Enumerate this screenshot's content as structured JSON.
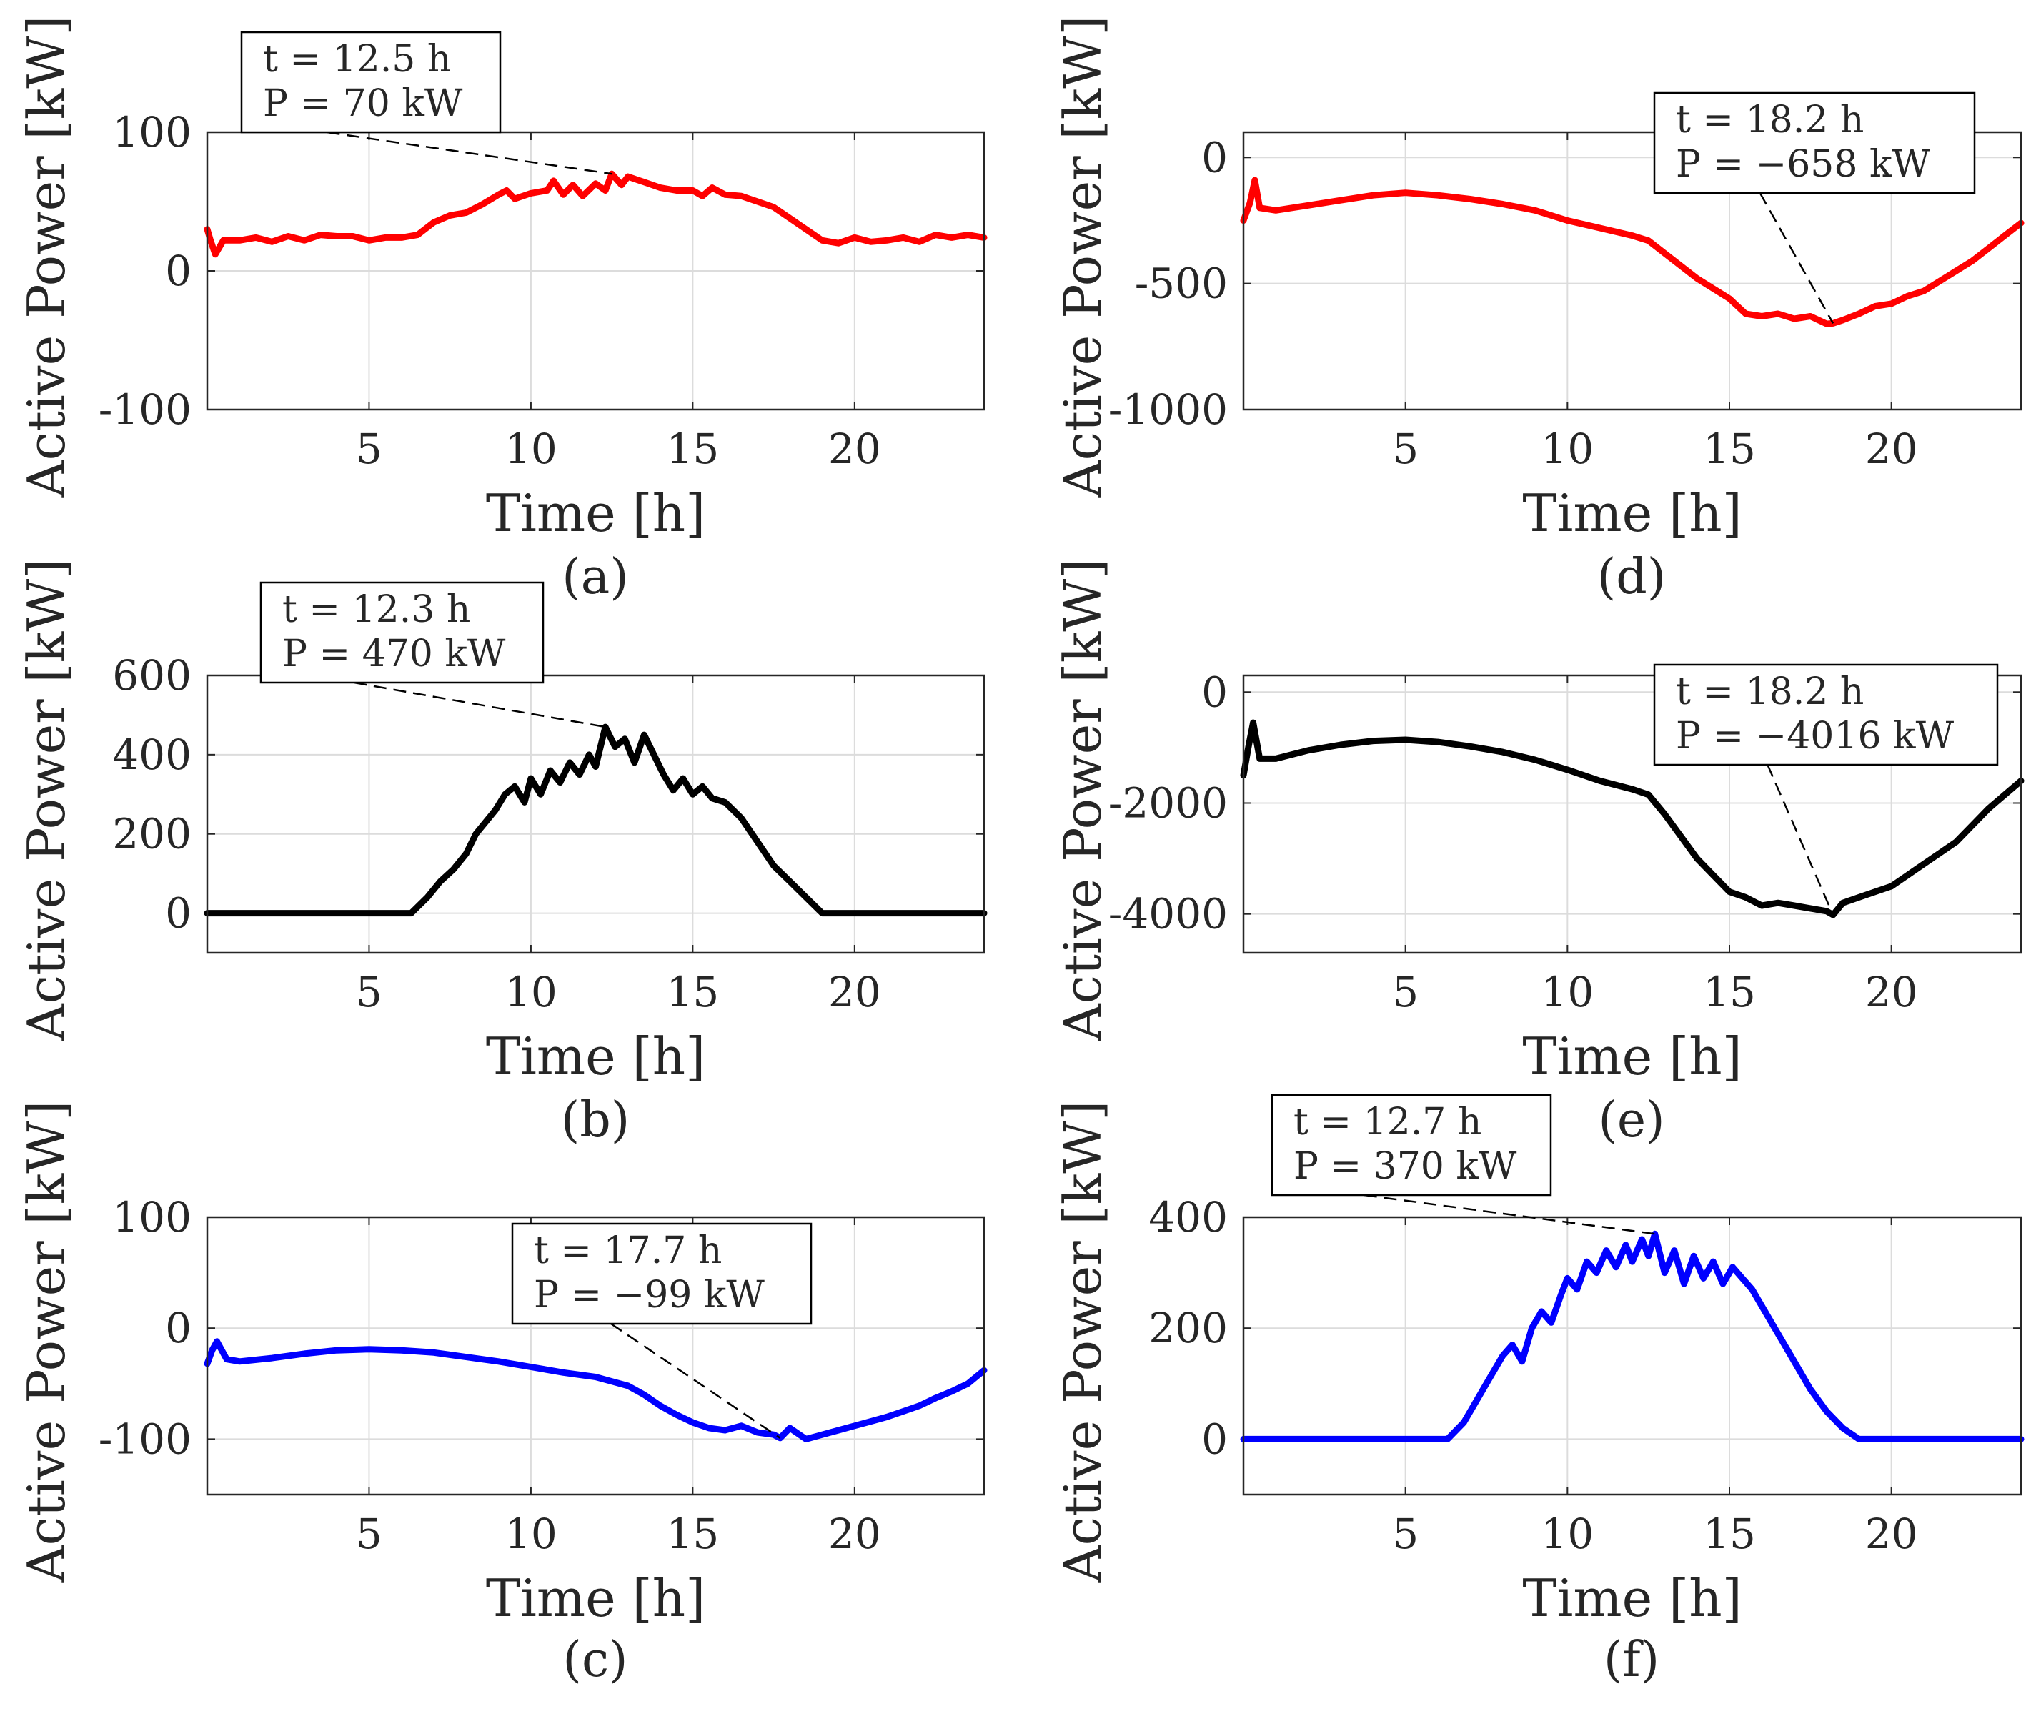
{
  "figure": {
    "ylabel_text": "Active Power [kW]",
    "xlabel_text": "Time [h]"
  },
  "chart_data": [
    {
      "id": "a",
      "caption": "(a)",
      "type": "line",
      "color": "#ff0000",
      "title": "",
      "xlabel": "Time [h]",
      "ylabel": "Active Power [kW]",
      "xlim": [
        0,
        24
      ],
      "ylim": [
        -100,
        100
      ],
      "xticks": [
        5,
        10,
        15,
        20
      ],
      "yticks": [
        -100,
        0,
        100
      ],
      "grid": true,
      "series": [
        {
          "name": "P",
          "x": [
            0,
            0.1,
            0.25,
            0.5,
            1,
            1.5,
            2,
            2.5,
            3,
            3.5,
            4,
            4.5,
            5,
            5.5,
            6,
            6.5,
            7,
            7.5,
            8,
            8.5,
            9,
            9.25,
            9.5,
            10,
            10.5,
            10.7,
            11,
            11.3,
            11.6,
            12,
            12.3,
            12.5,
            12.8,
            13,
            13.5,
            14,
            14.5,
            15,
            15.3,
            15.6,
            16,
            16.5,
            17,
            17.5,
            18,
            18.5,
            19,
            19.5,
            20,
            20.5,
            21,
            21.5,
            22,
            22.5,
            23,
            23.5,
            24
          ],
          "y": [
            30,
            22,
            12,
            22,
            22,
            24,
            21,
            25,
            22,
            26,
            25,
            25,
            22,
            24,
            24,
            26,
            35,
            40,
            42,
            48,
            55,
            58,
            52,
            56,
            58,
            65,
            55,
            62,
            54,
            63,
            58,
            70,
            62,
            68,
            64,
            60,
            58,
            58,
            54,
            60,
            55,
            54,
            50,
            46,
            38,
            30,
            22,
            20,
            24,
            21,
            22,
            24,
            21,
            26,
            24,
            26,
            24
          ]
        }
      ],
      "annotation": {
        "lines": [
          "t = 12.5 h",
          "P = 70 kW"
        ],
        "x": 12.5,
        "y": 70
      }
    },
    {
      "id": "b",
      "caption": "(b)",
      "type": "line",
      "color": "#000000",
      "title": "",
      "xlabel": "Time [h]",
      "ylabel": "Active Power [kW]",
      "xlim": [
        0,
        24
      ],
      "ylim": [
        -100,
        600
      ],
      "xticks": [
        5,
        10,
        15,
        20
      ],
      "yticks": [
        0,
        200,
        400,
        600
      ],
      "grid": true,
      "series": [
        {
          "name": "P",
          "x": [
            0,
            6.3,
            6.8,
            7.2,
            7.6,
            8,
            8.3,
            8.6,
            8.9,
            9.2,
            9.5,
            9.8,
            10,
            10.3,
            10.6,
            10.9,
            11.2,
            11.5,
            11.8,
            12,
            12.3,
            12.6,
            12.9,
            13.2,
            13.5,
            13.8,
            14.1,
            14.4,
            14.7,
            15,
            15.3,
            15.6,
            16,
            16.5,
            17,
            17.5,
            18,
            18.5,
            19,
            24
          ],
          "y": [
            0,
            0,
            40,
            80,
            110,
            150,
            200,
            230,
            260,
            300,
            320,
            280,
            340,
            300,
            360,
            330,
            380,
            350,
            400,
            370,
            470,
            420,
            440,
            380,
            450,
            400,
            350,
            310,
            340,
            300,
            320,
            290,
            280,
            240,
            180,
            120,
            80,
            40,
            0,
            0
          ]
        }
      ],
      "annotation": {
        "lines": [
          "t = 12.3 h",
          "P = 470 kW"
        ],
        "x": 12.3,
        "y": 470
      }
    },
    {
      "id": "c",
      "caption": "(c)",
      "type": "line",
      "color": "#0000ff",
      "title": "",
      "xlabel": "Time [h]",
      "ylabel": "Active Power [kW]",
      "xlim": [
        0,
        24
      ],
      "ylim": [
        -150,
        100
      ],
      "xticks": [
        5,
        10,
        15,
        20
      ],
      "yticks": [
        -100,
        0,
        100
      ],
      "grid": true,
      "series": [
        {
          "name": "P",
          "x": [
            0,
            0.15,
            0.3,
            0.6,
            1,
            2,
            3,
            4,
            5,
            6,
            7,
            8,
            9,
            10,
            11,
            12,
            12.5,
            13,
            13.5,
            14,
            14.5,
            15,
            15.5,
            16,
            16.5,
            17,
            17.5,
            17.7,
            18,
            18.5,
            19,
            19.5,
            20,
            20.5,
            21,
            21.5,
            22,
            22.5,
            23,
            23.5,
            24
          ],
          "y": [
            -32,
            -20,
            -12,
            -28,
            -30,
            -27,
            -23,
            -20,
            -19,
            -20,
            -22,
            -26,
            -30,
            -35,
            -40,
            -44,
            -48,
            -52,
            -60,
            -70,
            -78,
            -85,
            -90,
            -92,
            -88,
            -94,
            -96,
            -99,
            -90,
            -100,
            -96,
            -92,
            -88,
            -84,
            -80,
            -75,
            -70,
            -63,
            -57,
            -50,
            -38
          ]
        }
      ],
      "annotation": {
        "lines": [
          "t = 17.7 h",
          "P = −99 kW"
        ],
        "x": 17.7,
        "y": -99
      }
    },
    {
      "id": "d",
      "caption": "(d)",
      "type": "line",
      "color": "#ff0000",
      "title": "",
      "xlabel": "Time [h]",
      "ylabel": "Active Power [kW]",
      "xlim": [
        0,
        24
      ],
      "ylim": [
        -1000,
        100
      ],
      "xticks": [
        5,
        10,
        15,
        20
      ],
      "yticks": [
        -1000,
        -500,
        0
      ],
      "grid": true,
      "series": [
        {
          "name": "P",
          "x": [
            0,
            0.2,
            0.35,
            0.5,
            1,
            2,
            3,
            4,
            5,
            6,
            7,
            8,
            9,
            10,
            11,
            12,
            12.5,
            13,
            13.5,
            14,
            14.5,
            15,
            15.5,
            16,
            16.5,
            17,
            17.5,
            18,
            18.2,
            18.5,
            19,
            19.5,
            20,
            20.5,
            21,
            21.5,
            22,
            22.5,
            23,
            23.5,
            24
          ],
          "y": [
            -250,
            -180,
            -90,
            -200,
            -210,
            -190,
            -170,
            -150,
            -140,
            -150,
            -165,
            -185,
            -210,
            -250,
            -280,
            -310,
            -330,
            -380,
            -430,
            -480,
            -520,
            -560,
            -620,
            -630,
            -620,
            -640,
            -630,
            -660,
            -658,
            -645,
            -620,
            -590,
            -580,
            -550,
            -530,
            -490,
            -450,
            -410,
            -360,
            -310,
            -260
          ]
        }
      ],
      "annotation": {
        "lines": [
          "t = 18.2 h",
          "P = −658 kW"
        ],
        "x": 18.2,
        "y": -658
      }
    },
    {
      "id": "e",
      "caption": "(e)",
      "type": "line",
      "color": "#000000",
      "title": "",
      "xlabel": "Time [h]",
      "ylabel": "Active Power [kW]",
      "xlim": [
        0,
        24
      ],
      "ylim": [
        -4700,
        300
      ],
      "xticks": [
        5,
        10,
        15,
        20
      ],
      "yticks": [
        -4000,
        -2000,
        0
      ],
      "grid": true,
      "series": [
        {
          "name": "P",
          "x": [
            0,
            0.15,
            0.3,
            0.5,
            1,
            2,
            3,
            4,
            5,
            6,
            7,
            8,
            9,
            10,
            11,
            12,
            12.5,
            13,
            13.5,
            14,
            14.5,
            15,
            15.5,
            16,
            16.5,
            17,
            17.5,
            18,
            18.2,
            18.5,
            19,
            19.5,
            20,
            20.5,
            21,
            21.5,
            22,
            22.5,
            23,
            23.5,
            24
          ],
          "y": [
            -1500,
            -1000,
            -550,
            -1200,
            -1200,
            -1050,
            -950,
            -880,
            -860,
            -900,
            -980,
            -1080,
            -1220,
            -1400,
            -1600,
            -1750,
            -1850,
            -2200,
            -2600,
            -3000,
            -3300,
            -3600,
            -3700,
            -3850,
            -3800,
            -3850,
            -3900,
            -3950,
            -4016,
            -3800,
            -3700,
            -3600,
            -3500,
            -3300,
            -3100,
            -2900,
            -2700,
            -2400,
            -2100,
            -1850,
            -1600
          ]
        }
      ],
      "annotation": {
        "lines": [
          "t = 18.2 h",
          "P = −4016 kW"
        ],
        "x": 18.2,
        "y": -4016
      }
    },
    {
      "id": "f",
      "caption": "(f)",
      "type": "line",
      "color": "#0000ff",
      "title": "",
      "xlabel": "Time [h]",
      "ylabel": "Active Power [kW]",
      "xlim": [
        0,
        24
      ],
      "ylim": [
        -100,
        400
      ],
      "xticks": [
        5,
        10,
        15,
        20
      ],
      "yticks": [
        0,
        200,
        400
      ],
      "grid": true,
      "series": [
        {
          "name": "P",
          "x": [
            0,
            6.3,
            6.8,
            7.2,
            7.6,
            8,
            8.3,
            8.6,
            8.9,
            9.2,
            9.5,
            9.8,
            10,
            10.3,
            10.6,
            10.9,
            11.2,
            11.5,
            11.8,
            12,
            12.3,
            12.5,
            12.7,
            13,
            13.3,
            13.6,
            13.9,
            14.2,
            14.5,
            14.8,
            15.1,
            15.4,
            15.7,
            16,
            16.5,
            17,
            17.5,
            18,
            18.5,
            19,
            24
          ],
          "y": [
            0,
            0,
            30,
            70,
            110,
            150,
            170,
            140,
            200,
            230,
            210,
            260,
            290,
            270,
            320,
            300,
            340,
            310,
            350,
            320,
            360,
            330,
            370,
            300,
            340,
            280,
            330,
            290,
            320,
            280,
            310,
            290,
            270,
            240,
            190,
            140,
            90,
            50,
            20,
            0,
            0
          ]
        }
      ],
      "annotation": {
        "lines": [
          "t = 12.7 h",
          "P = 370 kW"
        ],
        "x": 12.7,
        "y": 370
      }
    }
  ]
}
